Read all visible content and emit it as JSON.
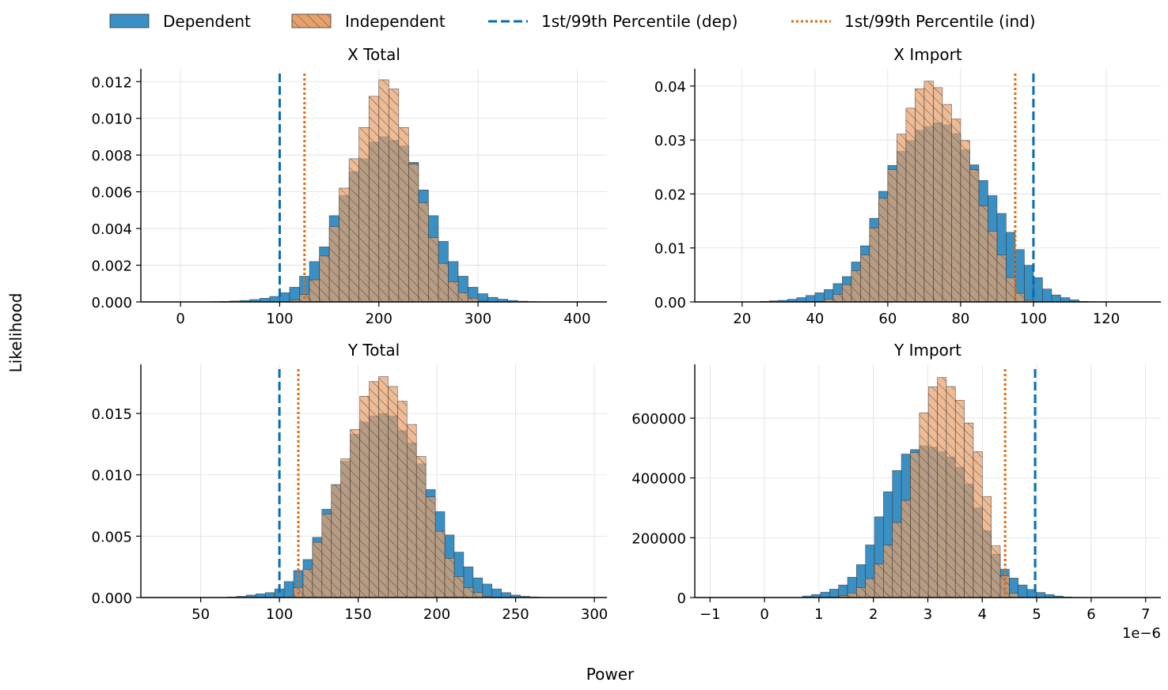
{
  "figure": {
    "xlabel": "Power",
    "ylabel": "Likelihood",
    "legend": [
      {
        "label": "Dependent",
        "kind": "patch",
        "color": "#3a8fc3"
      },
      {
        "label": "Independent",
        "kind": "patch-hatched",
        "color": "#e8a16c"
      },
      {
        "label": "1st/99th Percentile (dep)",
        "kind": "dashed-line",
        "color": "#0a6db4"
      },
      {
        "label": "1st/99th Percentile (ind)",
        "kind": "dotted-line",
        "color": "#e36a0e"
      }
    ],
    "colors": {
      "dependent": "#3a8fc3",
      "independent": "#e8a16c",
      "dep_line": "#0a6db4",
      "ind_line": "#e36a0e",
      "grid": "#dddddd",
      "edge": "#333333"
    }
  },
  "chart_data": [
    {
      "type": "bar",
      "title": "X Total",
      "xlabel": "Power",
      "ylabel": "Likelihood",
      "xlim": [
        -40,
        430
      ],
      "ylim": [
        0,
        0.0127
      ],
      "xticks": [
        0,
        100,
        200,
        300,
        400
      ],
      "xtick_labels": [
        "0",
        "100",
        "200",
        "300",
        "400"
      ],
      "yticks": [
        0,
        0.002,
        0.004,
        0.006,
        0.008,
        0.01,
        0.012
      ],
      "ytick_labels": [
        "0.000",
        "0.002",
        "0.004",
        "0.006",
        "0.008",
        "0.010",
        "0.012"
      ],
      "bin_width": 10,
      "series": [
        {
          "name": "Dependent",
          "bin_starts": [
            30,
            40,
            50,
            60,
            70,
            80,
            90,
            100,
            110,
            120,
            130,
            140,
            150,
            160,
            170,
            180,
            190,
            200,
            210,
            220,
            230,
            240,
            250,
            260,
            270,
            280,
            290,
            300,
            310,
            320,
            330,
            340,
            350,
            360,
            370,
            380,
            390,
            400
          ],
          "values": [
            2e-05,
            3e-05,
            5e-05,
            8e-05,
            0.00013,
            0.0002,
            0.0003,
            0.0005,
            0.0008,
            0.0014,
            0.0022,
            0.003,
            0.0047,
            0.0058,
            0.0071,
            0.0078,
            0.0087,
            0.009,
            0.0088,
            0.0085,
            0.0076,
            0.0061,
            0.0047,
            0.0033,
            0.0022,
            0.0014,
            0.0008,
            0.00045,
            0.00025,
            0.00015,
            8e-05,
            4e-05,
            2e-05,
            1e-05,
            1e-05,
            0.0,
            0.0,
            0.0
          ]
        },
        {
          "name": "Independent",
          "bin_starts": [
            110,
            120,
            130,
            140,
            150,
            160,
            170,
            180,
            190,
            200,
            210,
            220,
            230,
            240,
            250,
            260,
            270,
            280,
            290,
            300
          ],
          "values": [
            0.0001,
            0.0004,
            0.0012,
            0.0025,
            0.0041,
            0.0062,
            0.0078,
            0.0095,
            0.0112,
            0.0121,
            0.0116,
            0.0095,
            0.0075,
            0.0054,
            0.0035,
            0.0021,
            0.0011,
            0.0005,
            0.0002,
            5e-05
          ]
        }
      ],
      "percentiles": {
        "dep": [
          100
        ],
        "ind": [
          125
        ]
      }
    },
    {
      "type": "bar",
      "title": "X Import",
      "xlabel": "Power",
      "ylabel": "Likelihood",
      "xlim": [
        7,
        135
      ],
      "ylim": [
        0,
        0.0432
      ],
      "xticks": [
        20,
        40,
        60,
        80,
        100,
        120
      ],
      "xtick_labels": [
        "20",
        "40",
        "60",
        "80",
        "100",
        "120"
      ],
      "yticks": [
        0,
        0.01,
        0.02,
        0.03,
        0.04
      ],
      "ytick_labels": [
        "0.00",
        "0.01",
        "0.02",
        "0.03",
        "0.04"
      ],
      "bin_width": 2.5,
      "series": [
        {
          "name": "Dependent",
          "bin_starts": [
            25,
            27.5,
            30,
            32.5,
            35,
            37.5,
            40,
            42.5,
            45,
            47.5,
            50,
            52.5,
            55,
            57.5,
            60,
            62.5,
            65,
            67.5,
            70,
            72.5,
            75,
            77.5,
            80,
            82.5,
            85,
            87.5,
            90,
            92.5,
            95,
            97.5,
            100,
            102.5,
            105,
            107.5,
            110,
            112.5,
            115
          ],
          "values": [
            0.0001,
            0.0002,
            0.0003,
            0.0005,
            0.0008,
            0.0012,
            0.0017,
            0.0023,
            0.0034,
            0.0047,
            0.0074,
            0.0104,
            0.0155,
            0.0205,
            0.0253,
            0.0279,
            0.0299,
            0.0318,
            0.0325,
            0.0332,
            0.0328,
            0.0312,
            0.0282,
            0.0254,
            0.0225,
            0.0197,
            0.0164,
            0.0129,
            0.0097,
            0.0068,
            0.0045,
            0.0024,
            0.0013,
            0.0008,
            0.0004,
            0.0001,
            5e-05
          ]
        },
        {
          "name": "Independent",
          "bin_starts": [
            40,
            42.5,
            45,
            47.5,
            50,
            52.5,
            55,
            57.5,
            60,
            62.5,
            65,
            67.5,
            70,
            72.5,
            75,
            77.5,
            80,
            82.5,
            85,
            87.5,
            90,
            92.5,
            95,
            97.5
          ],
          "values": [
            0.0001,
            0.0005,
            0.0014,
            0.0032,
            0.0058,
            0.0087,
            0.0137,
            0.0192,
            0.0245,
            0.0311,
            0.0359,
            0.0395,
            0.0409,
            0.0397,
            0.0366,
            0.0339,
            0.0299,
            0.0245,
            0.0178,
            0.0131,
            0.0087,
            0.0045,
            0.0016,
            0.0003
          ]
        }
      ],
      "percentiles": {
        "dep": [
          100
        ],
        "ind": [
          95
        ]
      }
    },
    {
      "type": "bar",
      "title": "Y Total",
      "xlabel": "Power",
      "ylabel": "Likelihood",
      "xlim": [
        12,
        308
      ],
      "ylim": [
        0,
        0.019
      ],
      "xticks": [
        50,
        100,
        150,
        200,
        250,
        300
      ],
      "xtick_labels": [
        "50",
        "100",
        "150",
        "200",
        "250",
        "300"
      ],
      "yticks": [
        0,
        0.005,
        0.01,
        0.015
      ],
      "ytick_labels": [
        "0.000",
        "0.005",
        "0.010",
        "0.015"
      ],
      "bin_width": 6,
      "series": [
        {
          "name": "Dependent",
          "bin_starts": [
            67,
            73,
            79,
            85,
            91,
            97,
            103,
            109,
            115,
            121,
            127,
            133,
            139,
            145,
            151,
            157,
            163,
            169,
            175,
            181,
            187,
            193,
            199,
            205,
            211,
            217,
            223,
            229,
            235,
            241,
            247,
            253,
            259,
            265
          ],
          "values": [
            5e-05,
            0.0001,
            0.0002,
            0.0003,
            0.0004,
            0.0007,
            0.0013,
            0.0022,
            0.0031,
            0.0049,
            0.0072,
            0.0092,
            0.0111,
            0.0133,
            0.0143,
            0.0148,
            0.015,
            0.0148,
            0.0136,
            0.0126,
            0.0109,
            0.0088,
            0.007,
            0.0051,
            0.0037,
            0.0025,
            0.0016,
            0.0011,
            0.0007,
            0.0004,
            0.0002,
            0.0001,
            5e-05,
            2e-05
          ]
        },
        {
          "name": "Independent",
          "bin_starts": [
            109,
            115,
            121,
            127,
            133,
            139,
            145,
            151,
            157,
            163,
            169,
            175,
            181,
            187,
            193,
            199,
            205,
            211,
            217,
            223,
            229,
            235
          ],
          "values": [
            0.0008,
            0.0023,
            0.0045,
            0.0068,
            0.0092,
            0.0113,
            0.0137,
            0.0164,
            0.0176,
            0.018,
            0.0172,
            0.016,
            0.0141,
            0.0115,
            0.0082,
            0.0054,
            0.0032,
            0.0017,
            0.0008,
            0.0004,
            0.0001,
            4e-05
          ]
        }
      ],
      "percentiles": {
        "dep": [
          100
        ],
        "ind": [
          112
        ]
      }
    },
    {
      "type": "bar",
      "title": "Y Import",
      "xlabel": "Power",
      "ylabel": "Likelihood",
      "xlim": [
        -1.28,
        7.28
      ],
      "ylim": [
        0,
        780000
      ],
      "xticks": [
        -1,
        0,
        1,
        2,
        3,
        4,
        5,
        6,
        7
      ],
      "xtick_labels": [
        "−1",
        "0",
        "1",
        "2",
        "3",
        "4",
        "5",
        "6",
        "7"
      ],
      "yticks": [
        0,
        200000,
        400000,
        600000
      ],
      "ytick_labels": [
        "0",
        "200000",
        "400000",
        "600000"
      ],
      "offset_text": "1e−6",
      "bin_width": 0.165,
      "series": [
        {
          "name": "Dependent",
          "bin_starts": [
            0.7,
            0.865,
            1.03,
            1.195,
            1.36,
            1.525,
            1.69,
            1.855,
            2.02,
            2.185,
            2.35,
            2.515,
            2.68,
            2.845,
            3.01,
            3.175,
            3.34,
            3.505,
            3.67,
            3.835,
            4.0,
            4.165,
            4.33,
            4.495,
            4.66,
            4.825,
            4.99,
            5.155,
            5.32,
            5.485
          ],
          "values": [
            5000,
            10000,
            18000,
            28000,
            42000,
            68000,
            110000,
            176000,
            270000,
            354000,
            425000,
            480000,
            495000,
            508000,
            503000,
            488000,
            470000,
            436000,
            380000,
            300000,
            224000,
            145000,
            95000,
            65000,
            42000,
            27000,
            17000,
            10000,
            5000,
            2000
          ]
        },
        {
          "name": "Independent",
          "bin_starts": [
            1.195,
            1.36,
            1.525,
            1.69,
            1.855,
            2.02,
            2.185,
            2.35,
            2.515,
            2.68,
            2.845,
            3.01,
            3.175,
            3.34,
            3.505,
            3.67,
            3.835,
            4.0,
            4.165,
            4.33,
            4.495
          ],
          "values": [
            1500,
            6000,
            15000,
            33000,
            63000,
            112000,
            175000,
            251000,
            325000,
            485000,
            618000,
            705000,
            736000,
            706000,
            660000,
            584000,
            488000,
            338000,
            173000,
            72000,
            14000
          ]
        }
      ],
      "percentiles": {
        "dep": [
          4.97
        ],
        "ind": [
          4.42
        ]
      }
    }
  ]
}
